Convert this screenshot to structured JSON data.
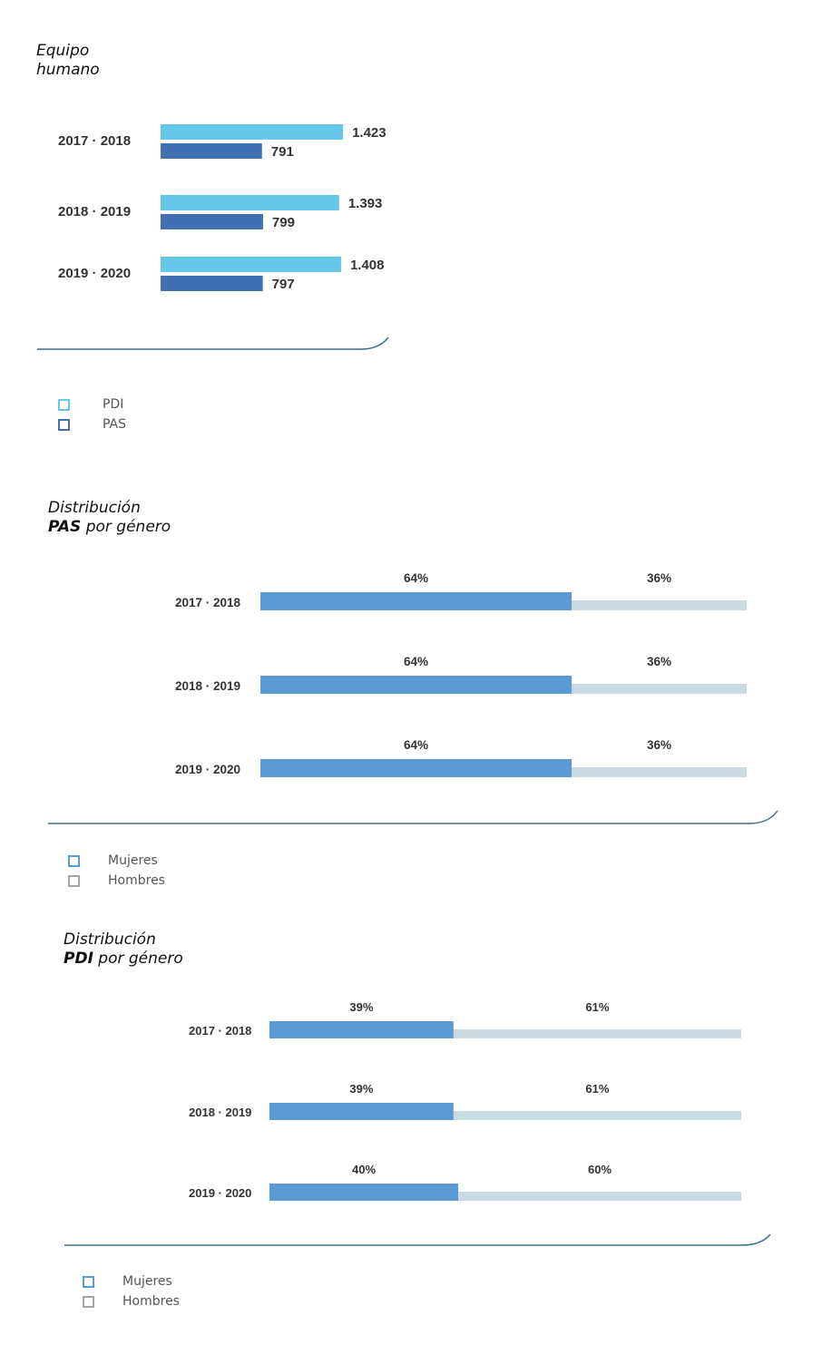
{
  "colors": {
    "pdi": "#65c8ea",
    "pas": "#416fb4",
    "mujeres": "#5b9bd5",
    "hombres": "#c9dae2",
    "hombres_legend": "#a6a6a6",
    "axis": "#3d6f8e"
  },
  "charts": {
    "equipo": {
      "title_line1": "Equipo",
      "title_line2": "humano",
      "legend": {
        "pdi": "PDI",
        "pas": "PAS"
      }
    },
    "pas_genero": {
      "title_line1": "Distribución",
      "title_line2_bold": "PAS",
      "title_line2_rest": " por género",
      "legend": {
        "mujeres": "Mujeres",
        "hombres": "Hombres"
      }
    },
    "pdi_genero": {
      "title_line1": "Distribución",
      "title_line2_bold": "PDI",
      "title_line2_rest": " por género",
      "legend": {
        "mujeres": "Mujeres",
        "hombres": "Hombres"
      }
    }
  },
  "chart_data": [
    {
      "type": "bar",
      "title": "Equipo humano",
      "categories": [
        "2017 · 2018",
        "2018 · 2019",
        "2019 · 2020"
      ],
      "series": [
        {
          "name": "PDI",
          "values": [
            1423,
            1393,
            1408
          ],
          "labels": [
            "1.423",
            "1.393",
            "1.408"
          ]
        },
        {
          "name": "PAS",
          "values": [
            791,
            799,
            797
          ],
          "labels": [
            "791",
            "799",
            "797"
          ]
        }
      ]
    },
    {
      "type": "bar",
      "stacked": true,
      "title": "Distribución PAS por género",
      "categories": [
        "2017 · 2018",
        "2018 · 2019",
        "2019 · 2020"
      ],
      "series": [
        {
          "name": "Mujeres",
          "values": [
            64,
            64,
            64
          ],
          "labels": [
            "64%",
            "64%",
            "64%"
          ]
        },
        {
          "name": "Hombres",
          "values": [
            36,
            36,
            36
          ],
          "labels": [
            "36%",
            "36%",
            "36%"
          ]
        }
      ]
    },
    {
      "type": "bar",
      "stacked": true,
      "title": "Distribución PDI por género",
      "categories": [
        "2017 · 2018",
        "2018 · 2019",
        "2019 · 2020"
      ],
      "series": [
        {
          "name": "Mujeres",
          "values": [
            39,
            39,
            40
          ],
          "labels": [
            "39%",
            "39%",
            "40%"
          ]
        },
        {
          "name": "Hombres",
          "values": [
            61,
            61,
            60
          ],
          "labels": [
            "61%",
            "61%",
            "60%"
          ]
        }
      ]
    }
  ]
}
